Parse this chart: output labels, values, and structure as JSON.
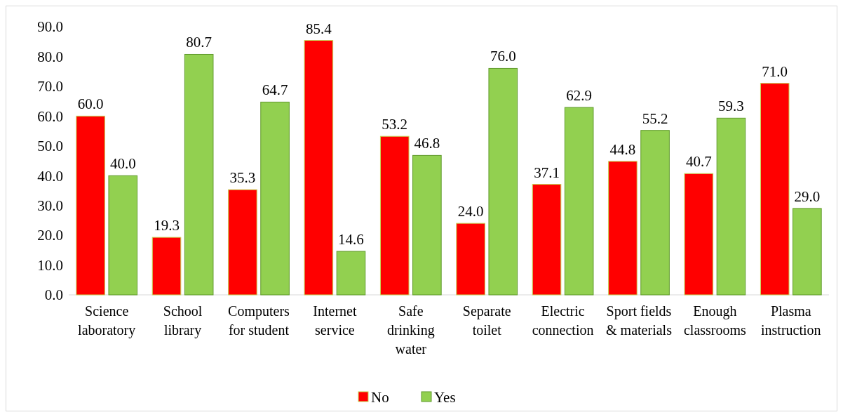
{
  "chart_data": {
    "type": "bar",
    "categories": [
      "Science laboratory",
      "School library",
      "Computers for student",
      "Internet service",
      "Safe drinking water",
      "Separate toilet",
      "Electric connection",
      "Sport fields & materials",
      "Enough classrooms",
      "Plasma instruction"
    ],
    "series": [
      {
        "name": "No",
        "color": "#ff0000",
        "values": [
          60.0,
          19.3,
          35.3,
          85.4,
          53.2,
          24.0,
          37.1,
          44.8,
          40.7,
          71.0
        ],
        "value_labels": [
          "60.0",
          "19.3",
          "35.3",
          "85.4",
          "53.2",
          "24.0",
          "37.1",
          "44.8",
          "40.7",
          "71.0"
        ]
      },
      {
        "name": "Yes",
        "color": "#92d050",
        "values": [
          40.0,
          80.7,
          64.7,
          14.6,
          46.8,
          76.0,
          62.9,
          55.2,
          59.3,
          29.0
        ],
        "value_labels": [
          "40.0",
          "80.7",
          "64.7",
          "14.6",
          "46.8",
          "76.0",
          "62.9",
          "55.2",
          "59.3",
          "29.0"
        ]
      }
    ],
    "ylim": [
      0,
      90
    ],
    "yticks": [
      {
        "value": 0,
        "label": "0.0"
      },
      {
        "value": 10,
        "label": "10.0"
      },
      {
        "value": 20,
        "label": "20.0"
      },
      {
        "value": 30,
        "label": "30.0"
      },
      {
        "value": 40,
        "label": "40.0"
      },
      {
        "value": 50,
        "label": "50.0"
      },
      {
        "value": 60,
        "label": "60.0"
      },
      {
        "value": 70,
        "label": "70.0"
      },
      {
        "value": 80,
        "label": "80.0"
      },
      {
        "value": 90,
        "label": "90.0"
      }
    ],
    "grid": false,
    "legend": "bottom"
  }
}
